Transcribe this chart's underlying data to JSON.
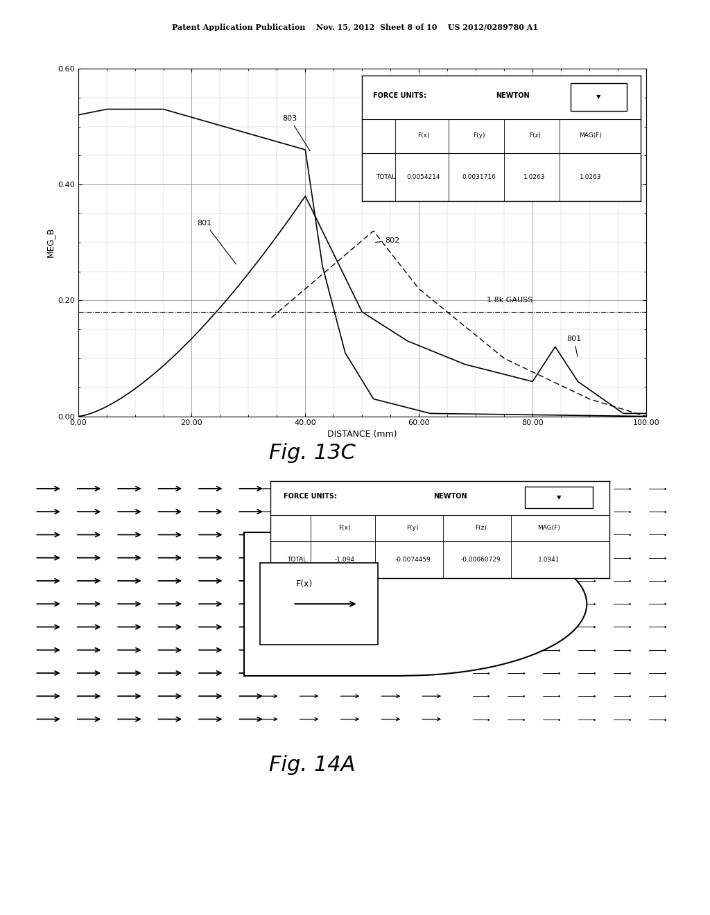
{
  "header_text": "Patent Application Publication    Nov. 15, 2012  Sheet 8 of 10    US 2012/0289780 A1",
  "fig13c_label": "Fig. 13C",
  "fig14a_label": "Fig. 14A",
  "graph": {
    "xlabel": "DISTANCE (mm)",
    "ylabel": "MEG_B",
    "xlim": [
      0,
      100
    ],
    "ylim": [
      0,
      0.6
    ],
    "xticks": [
      0.0,
      20.0,
      40.0,
      60.0,
      80.0,
      100.0
    ],
    "yticks": [
      0.0,
      0.2,
      0.4,
      0.6
    ],
    "xtick_labels": [
      "0.00",
      "20.00",
      "40.00",
      "60.00",
      "80.00",
      "100.00"
    ],
    "ytick_labels": [
      "0.00",
      "0.20",
      "0.40",
      "0.60"
    ],
    "force_box": {
      "unit": "NEWTON",
      "headers": [
        "F(x)",
        "F(y)",
        "F(z)",
        "MAG(F)"
      ],
      "row_label": "TOTAL",
      "values": [
        "0.0054214",
        "0.0031716",
        "1.0263",
        "1.0263"
      ]
    },
    "gauss_line_y": 0.18,
    "gauss_label": "1.8k GAUSS"
  },
  "field_diagram": {
    "force_box": {
      "unit": "NEWTON",
      "headers": [
        "F(x)",
        "F(y)",
        "F(z)",
        "MAG(F)"
      ],
      "row_label": "TOTAL",
      "values": [
        "-1.094",
        "-0.0074459",
        "-0.00060729",
        "1.0941"
      ]
    },
    "label": "F(x)"
  }
}
